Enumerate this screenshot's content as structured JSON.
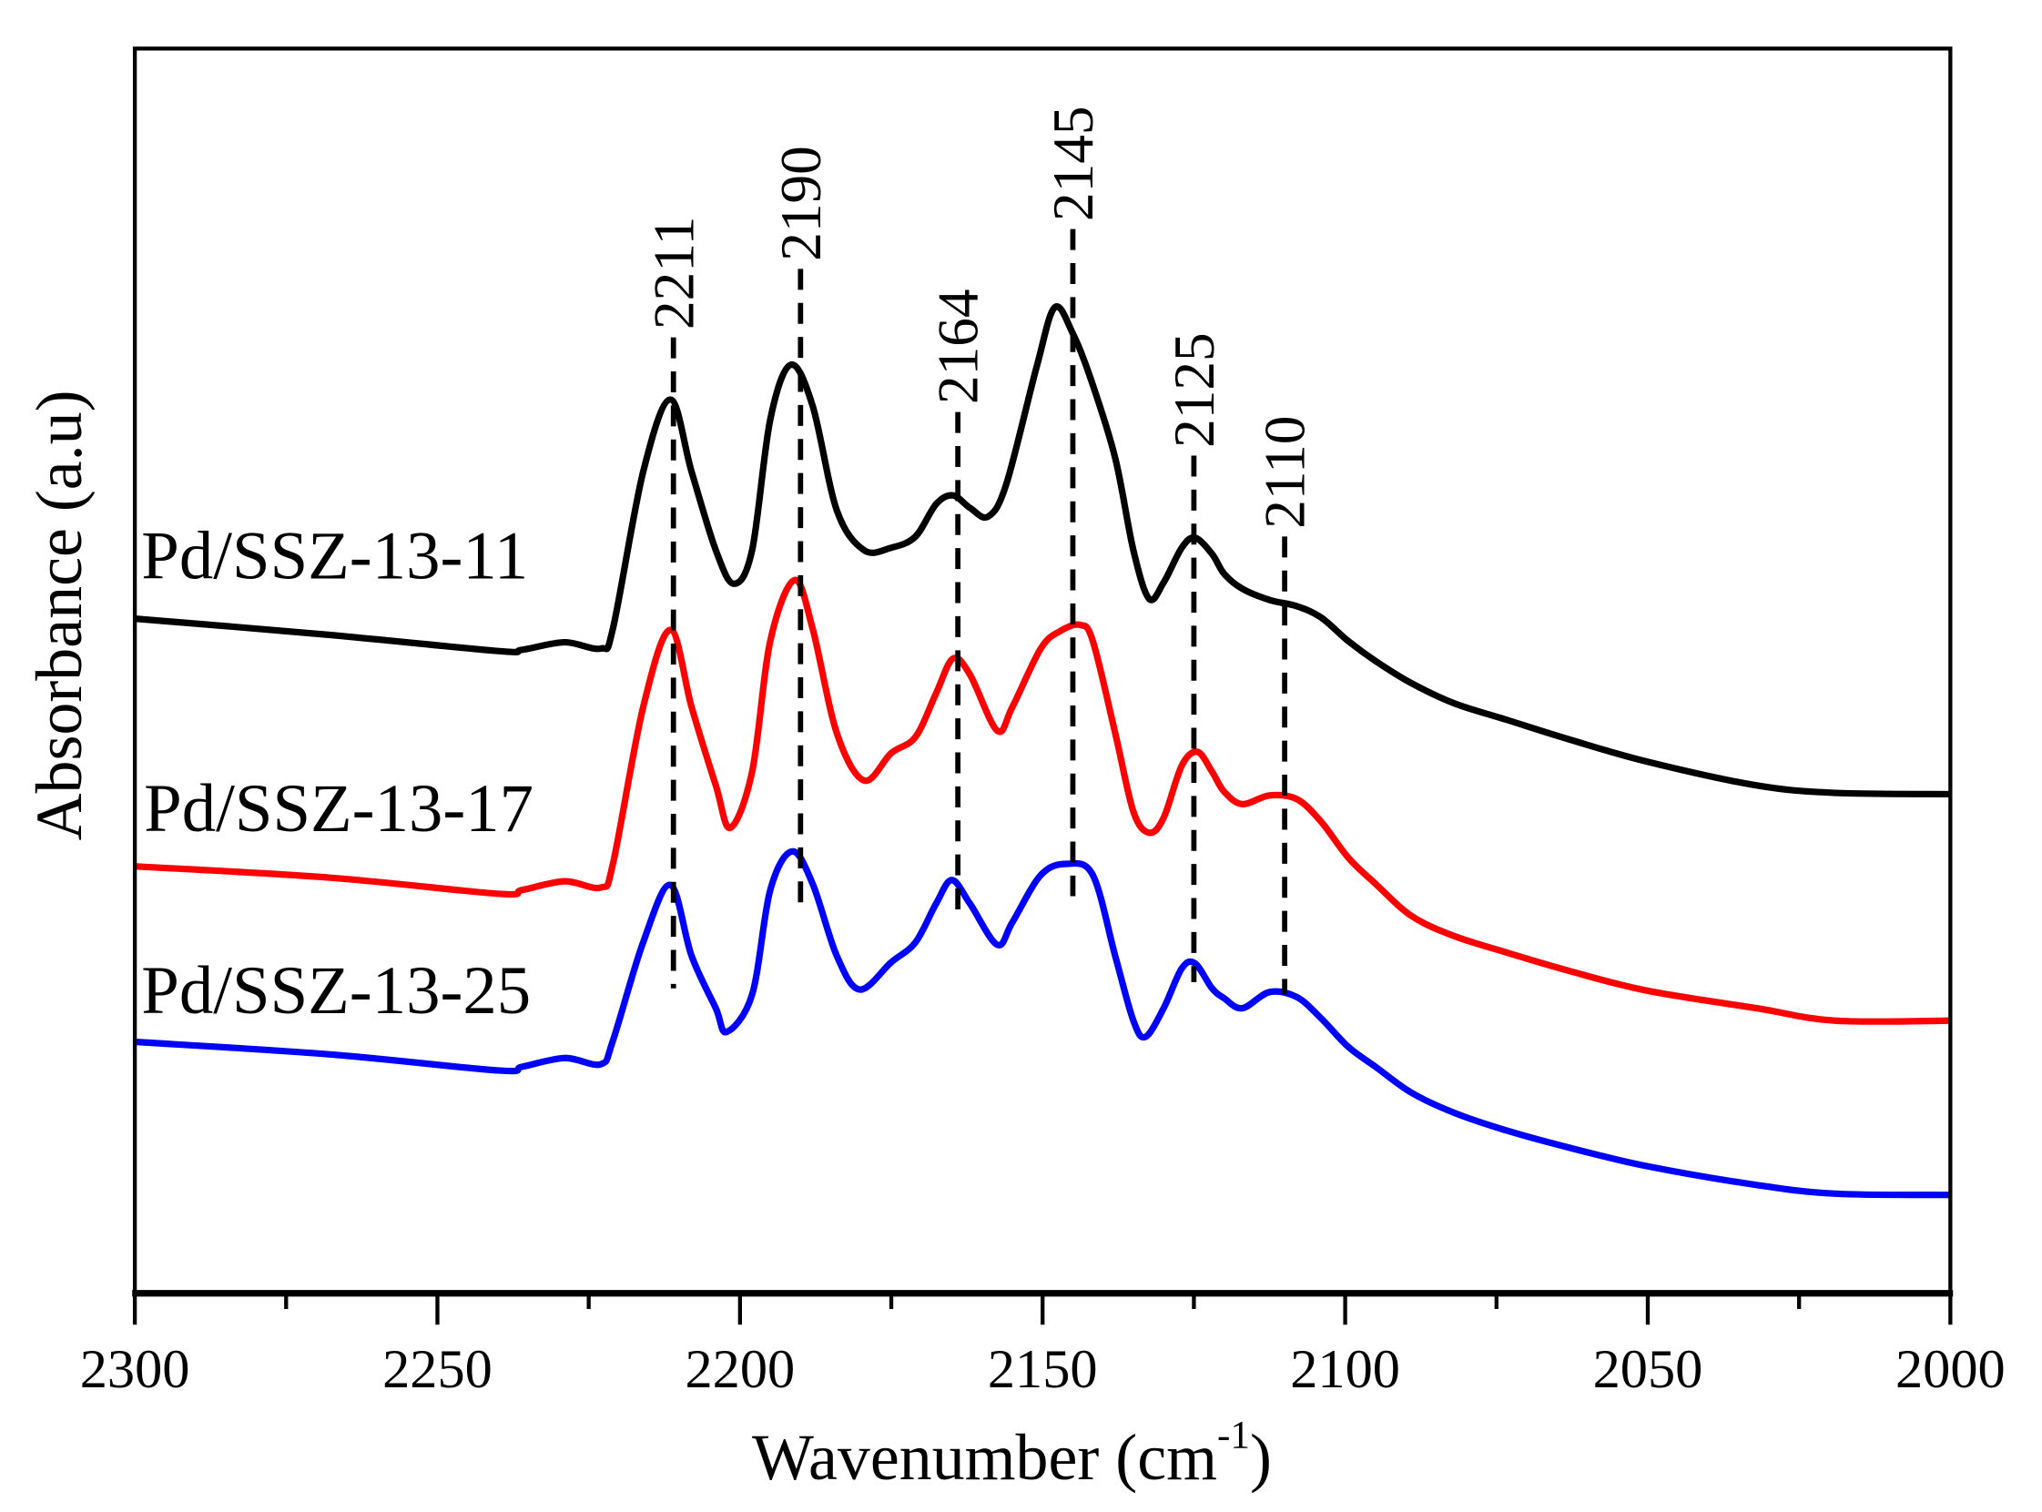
{
  "chart_data": {
    "type": "line",
    "title": "",
    "xlabel": "Wavenumber (cm",
    "xlabel_sup": "-1",
    "xlabel_close": ")",
    "ylabel": "Absorbance (a.u)",
    "xlim": [
      2300,
      2000
    ],
    "ylim": [
      0,
      100
    ],
    "xticks": [
      2300,
      2250,
      2200,
      2150,
      2100,
      2050,
      2000
    ],
    "xtick_labels": [
      "2300",
      "2250",
      "2200",
      "2150",
      "2100",
      "2050",
      "2000"
    ],
    "minor_xticks": [
      2275,
      2225,
      2175,
      2125,
      2075,
      2025
    ],
    "grid": false,
    "series": [
      {
        "name": "Pd/SSZ-13-11",
        "color": "#000000",
        "x": [
          2300,
          2268,
          2240,
          2236,
          2229,
          2223,
          2221,
          2216,
          2211.5,
          2208,
          2204,
          2201,
          2198,
          2195,
          2191.6,
          2188,
          2184,
          2179.5,
          2175,
          2171,
          2167.6,
          2164.8,
          2162,
          2159,
          2156,
          2151,
          2148,
          2145,
          2142,
          2138,
          2135,
          2132.4,
          2130,
          2127,
          2124.8,
          2122,
          2120,
          2117,
          2112.5,
          2108,
          2104,
          2099.5,
          2095,
          2089,
          2082,
          2073.5,
          2063,
          2050,
          2032,
          2019,
          2000
        ],
        "y": [
          54.2,
          52.9,
          51.6,
          51.7,
          52.3,
          51.8,
          53.4,
          66.0,
          71.8,
          66.0,
          59.7,
          57.0,
          59.7,
          70.2,
          74.6,
          71.3,
          62.9,
          59.7,
          59.9,
          60.8,
          63.4,
          64.1,
          63.1,
          62.4,
          65.0,
          74.4,
          79.2,
          77.1,
          73.4,
          67.1,
          59.7,
          55.8,
          57.1,
          59.9,
          60.7,
          59.4,
          57.8,
          56.6,
          55.7,
          55.2,
          54.3,
          52.4,
          50.8,
          49.0,
          47.4,
          46.1,
          44.5,
          42.7,
          40.8,
          40.2,
          40.1
        ]
      },
      {
        "name": "Pd/SSZ-13-17",
        "color": "#ff0000",
        "x": [
          2300,
          2268,
          2240,
          2236,
          2229,
          2223,
          2221,
          2216,
          2211.5,
          2208,
          2204,
          2201.6,
          2198,
          2195,
          2191,
          2188,
          2184,
          2179.5,
          2175,
          2171,
          2167.6,
          2164.8,
          2162,
          2157.5,
          2155,
          2150.3,
          2147.1,
          2143.8,
          2141.7,
          2138,
          2135,
          2132.4,
          2130,
          2127,
          2124.4,
          2122,
          2120,
          2117,
          2112.5,
          2108,
          2104,
          2099.5,
          2095,
          2089,
          2082,
          2073.5,
          2063,
          2050,
          2032,
          2019,
          2000
        ],
        "y": [
          34.3,
          33.4,
          32.1,
          32.4,
          33.1,
          32.6,
          34.5,
          47.1,
          53.3,
          47.1,
          40.8,
          37.4,
          41.9,
          52.4,
          57.3,
          53.4,
          45.0,
          41.2,
          43.4,
          44.7,
          48.2,
          51.0,
          49.7,
          45.2,
          47.1,
          51.8,
          53.2,
          53.7,
          52.4,
          45.0,
          38.7,
          37.0,
          38.2,
          42.4,
          43.5,
          41.9,
          40.3,
          39.3,
          40.0,
          39.7,
          37.9,
          35.0,
          32.9,
          30.3,
          28.7,
          27.4,
          25.9,
          24.3,
          22.9,
          21.9,
          21.9
        ]
      },
      {
        "name": "Pd/SSZ-13-25",
        "color": "#0000ff",
        "x": [
          2300,
          2268,
          2240,
          2236,
          2229,
          2223,
          2221,
          2216,
          2211.5,
          2208,
          2204,
          2202.2,
          2198,
          2195,
          2191.4,
          2188,
          2184,
          2180.2,
          2175,
          2171,
          2167.6,
          2165,
          2162,
          2157.5,
          2155,
          2150.3,
          2146,
          2141.7,
          2138,
          2135,
          2133,
          2130,
          2127,
          2124.8,
          2122,
          2120,
          2117,
          2112.5,
          2108,
          2104,
          2099.5,
          2095,
          2089,
          2082,
          2073.5,
          2063,
          2050,
          2032,
          2019,
          2000
        ],
        "y": [
          20.2,
          19.2,
          17.9,
          18.2,
          18.9,
          18.4,
          20.3,
          28.2,
          32.8,
          27.1,
          22.9,
          21.0,
          24.0,
          32.4,
          35.5,
          32.9,
          27.1,
          24.4,
          26.6,
          28.2,
          31.3,
          33.2,
          31.3,
          28.0,
          29.8,
          33.6,
          34.5,
          33.6,
          27.1,
          21.9,
          20.6,
          22.9,
          26.1,
          26.5,
          24.5,
          23.7,
          22.9,
          24.2,
          23.8,
          22.1,
          19.8,
          18.2,
          16.1,
          14.5,
          13.1,
          11.7,
          10.2,
          8.7,
          8.0,
          7.9
        ]
      }
    ],
    "annotations": [
      {
        "label": "2211",
        "x": 2211,
        "y_range": [
          24.5,
          76.8
        ]
      },
      {
        "label": "2190",
        "x": 2190,
        "y_range": [
          31.3,
          82.3
        ]
      },
      {
        "label": "2164",
        "x": 2164,
        "y_range": [
          29.8,
          70.8
        ]
      },
      {
        "label": "2145",
        "x": 2145,
        "y_range": [
          31.9,
          85.5
        ]
      },
      {
        "label": "2125",
        "x": 2125,
        "y_range": [
          25.0,
          67.3
        ]
      },
      {
        "label": "2110",
        "x": 2110,
        "y_range": [
          24.0,
          60.8
        ]
      }
    ]
  }
}
